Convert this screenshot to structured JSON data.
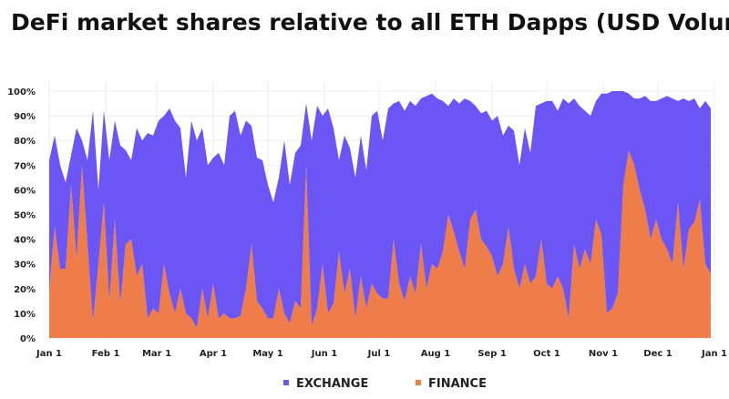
{
  "chart_data": {
    "type": "area",
    "stacked": true,
    "title": "DeFi market shares relative to all ETH Dapps (USD Volume)",
    "xlabel": "",
    "ylabel": "",
    "ylim": [
      0,
      100
    ],
    "y_ticks": [
      "0%",
      "10%",
      "20%",
      "30%",
      "40%",
      "50%",
      "60%",
      "70%",
      "80%",
      "90%",
      "100%"
    ],
    "y_tick_values": [
      0,
      10,
      20,
      30,
      40,
      50,
      60,
      70,
      80,
      90,
      100
    ],
    "x_ticks": [
      "Jan 1",
      "Feb 1",
      "Mar 1",
      "Apr 1",
      "May 1",
      "Jun 1",
      "Jul 1",
      "Aug 1",
      "Sep 1",
      "Oct 1",
      "Nov 1",
      "Dec 1",
      "Jan 1"
    ],
    "x_tick_days": [
      0,
      31,
      59,
      90,
      120,
      151,
      181,
      212,
      243,
      273,
      304,
      334,
      365
    ],
    "x_range_days": [
      0,
      365
    ],
    "grid": true,
    "legend_position": "bottom-center",
    "x_days": [
      0,
      3,
      6,
      9,
      12,
      15,
      18,
      21,
      24,
      27,
      30,
      33,
      36,
      39,
      42,
      45,
      48,
      51,
      54,
      57,
      60,
      63,
      66,
      69,
      72,
      75,
      78,
      81,
      84,
      87,
      90,
      93,
      96,
      99,
      102,
      105,
      108,
      111,
      114,
      117,
      120,
      123,
      126,
      129,
      132,
      135,
      138,
      141,
      144,
      147,
      150,
      153,
      156,
      159,
      162,
      165,
      168,
      171,
      174,
      177,
      180,
      183,
      186,
      189,
      192,
      195,
      198,
      201,
      204,
      207,
      210,
      213,
      216,
      219,
      222,
      225,
      228,
      231,
      234,
      237,
      240,
      243,
      246,
      249,
      252,
      255,
      258,
      261,
      264,
      267,
      270,
      273,
      276,
      279,
      282,
      285,
      288,
      291,
      294,
      297,
      300,
      303,
      306,
      309,
      312,
      315,
      318,
      321,
      324,
      327,
      330,
      333,
      336,
      339,
      342,
      345,
      348,
      351,
      354,
      357,
      360,
      363
    ],
    "series": [
      {
        "name": "FINANCE",
        "color": "#ef7d4a",
        "values": [
          20,
          45,
          28,
          28,
          62,
          32,
          70,
          38,
          7,
          30,
          55,
          15,
          48,
          14,
          38,
          40,
          25,
          30,
          8,
          12,
          10,
          30,
          18,
          10,
          20,
          10,
          8,
          4,
          20,
          8,
          22,
          8,
          10,
          8,
          8,
          9,
          20,
          38,
          15,
          12,
          8,
          8,
          20,
          10,
          6,
          15,
          12,
          70,
          5,
          12,
          30,
          10,
          14,
          35,
          18,
          28,
          8,
          25,
          12,
          22,
          18,
          16,
          16,
          40,
          22,
          15,
          25,
          18,
          38,
          20,
          30,
          28,
          35,
          50,
          43,
          35,
          28,
          48,
          52,
          40,
          37,
          33,
          25,
          30,
          45,
          28,
          20,
          30,
          22,
          25,
          40,
          22,
          20,
          25,
          20,
          8,
          38,
          28,
          36,
          30,
          48,
          42,
          10,
          12,
          18,
          62,
          76,
          70,
          60,
          52,
          40,
          48,
          40,
          36,
          30,
          55,
          28,
          44,
          47,
          56,
          30,
          26
        ]
      },
      {
        "name": "EXCHANGE",
        "color": "#6b55f4",
        "values": [
          52,
          37,
          42,
          35,
          12,
          53,
          10,
          34,
          85,
          30,
          37,
          57,
          40,
          64,
          38,
          32,
          60,
          50,
          75,
          70,
          78,
          60,
          75,
          78,
          65,
          55,
          80,
          76,
          65,
          62,
          51,
          67,
          60,
          82,
          84,
          73,
          68,
          48,
          58,
          60,
          54,
          47,
          45,
          70,
          56,
          60,
          66,
          25,
          75,
          82,
          60,
          83,
          71,
          37,
          64,
          49,
          57,
          57,
          56,
          68,
          74,
          64,
          77,
          55,
          74,
          77,
          71,
          76,
          59,
          78,
          69,
          69,
          61,
          44,
          54,
          60,
          69,
          48,
          42,
          51,
          55,
          55,
          65,
          52,
          41,
          56,
          50,
          55,
          53,
          69,
          55,
          74,
          76,
          67,
          77,
          87,
          59,
          66,
          56,
          60,
          48,
          57,
          89,
          88,
          82,
          38,
          23,
          27,
          37,
          46,
          56,
          48,
          57,
          62,
          67,
          41,
          69,
          52,
          50,
          37,
          66,
          67
        ]
      }
    ],
    "legend": [
      {
        "label": "EXCHANGE",
        "color": "#6b55f4"
      },
      {
        "label": "FINANCE",
        "color": "#ef7d4a"
      }
    ]
  }
}
